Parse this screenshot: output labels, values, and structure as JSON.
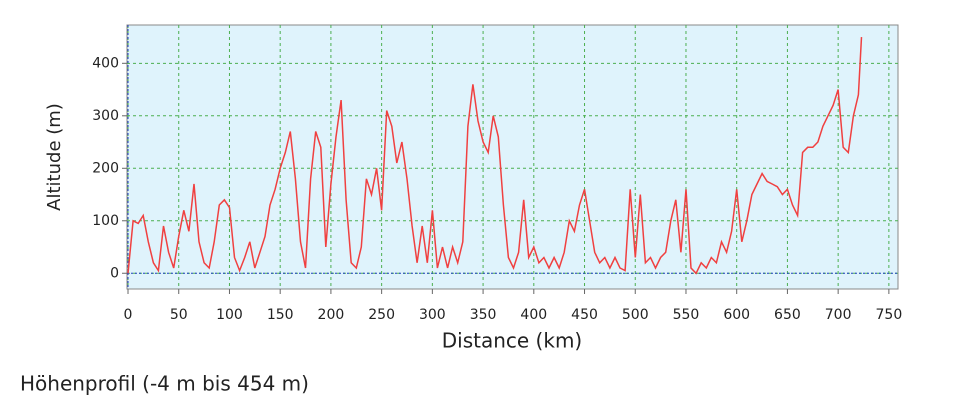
{
  "chart_data": {
    "type": "line",
    "xlabel": "Distance (km)",
    "ylabel": "Altitude (m)",
    "caption": "Höhenprofil (-4 m bis 454 m)",
    "color": "#f04040",
    "grid": true,
    "zero_line": true,
    "xlim": [
      -1,
      759
    ],
    "ylim": [
      -30,
      473
    ],
    "xticks": [
      0,
      50,
      100,
      150,
      200,
      250,
      300,
      350,
      400,
      450,
      500,
      550,
      600,
      650,
      700,
      750
    ],
    "yticks": [
      0,
      100,
      200,
      300,
      400
    ],
    "x": [
      0,
      5,
      10,
      15,
      20,
      25,
      30,
      35,
      40,
      45,
      50,
      55,
      60,
      65,
      70,
      75,
      80,
      85,
      90,
      95,
      100,
      105,
      110,
      115,
      120,
      125,
      130,
      135,
      140,
      145,
      150,
      155,
      160,
      165,
      170,
      175,
      180,
      185,
      190,
      195,
      200,
      205,
      210,
      215,
      220,
      225,
      230,
      235,
      240,
      245,
      250,
      255,
      260,
      265,
      270,
      275,
      280,
      285,
      290,
      295,
      300,
      305,
      310,
      315,
      320,
      325,
      330,
      335,
      340,
      345,
      350,
      355,
      360,
      365,
      370,
      375,
      380,
      385,
      390,
      395,
      400,
      405,
      410,
      415,
      420,
      425,
      430,
      435,
      440,
      445,
      450,
      455,
      460,
      465,
      470,
      475,
      480,
      485,
      490,
      495,
      500,
      505,
      510,
      515,
      520,
      525,
      530,
      535,
      540,
      545,
      550,
      555,
      560,
      565,
      570,
      575,
      580,
      585,
      590,
      595,
      600,
      605,
      610,
      615,
      620,
      625,
      630,
      635,
      640,
      645,
      650,
      655,
      660,
      665,
      670,
      675,
      680,
      685,
      690,
      695,
      700,
      705,
      710,
      715,
      720,
      723
    ],
    "values": [
      0,
      100,
      95,
      110,
      60,
      20,
      5,
      90,
      40,
      10,
      70,
      120,
      80,
      170,
      60,
      20,
      10,
      60,
      130,
      140,
      125,
      30,
      5,
      30,
      60,
      10,
      40,
      70,
      130,
      160,
      200,
      230,
      270,
      180,
      60,
      10,
      180,
      270,
      240,
      50,
      170,
      260,
      330,
      140,
      20,
      10,
      50,
      180,
      150,
      200,
      120,
      310,
      280,
      210,
      250,
      180,
      90,
      20,
      90,
      20,
      120,
      10,
      50,
      10,
      50,
      20,
      60,
      280,
      360,
      290,
      250,
      230,
      300,
      260,
      130,
      30,
      10,
      40,
      140,
      30,
      50,
      20,
      30,
      10,
      30,
      10,
      40,
      100,
      80,
      130,
      160,
      100,
      40,
      20,
      30,
      10,
      30,
      10,
      5,
      160,
      30,
      150,
      20,
      30,
      10,
      30,
      40,
      100,
      140,
      40,
      160,
      10,
      0,
      20,
      10,
      30,
      20,
      60,
      40,
      80,
      160,
      60,
      100,
      150,
      170,
      190,
      175,
      170,
      165,
      150,
      160,
      130,
      110,
      230,
      240,
      240,
      250,
      280,
      300,
      320,
      350,
      240,
      230,
      300,
      340,
      450
    ]
  }
}
